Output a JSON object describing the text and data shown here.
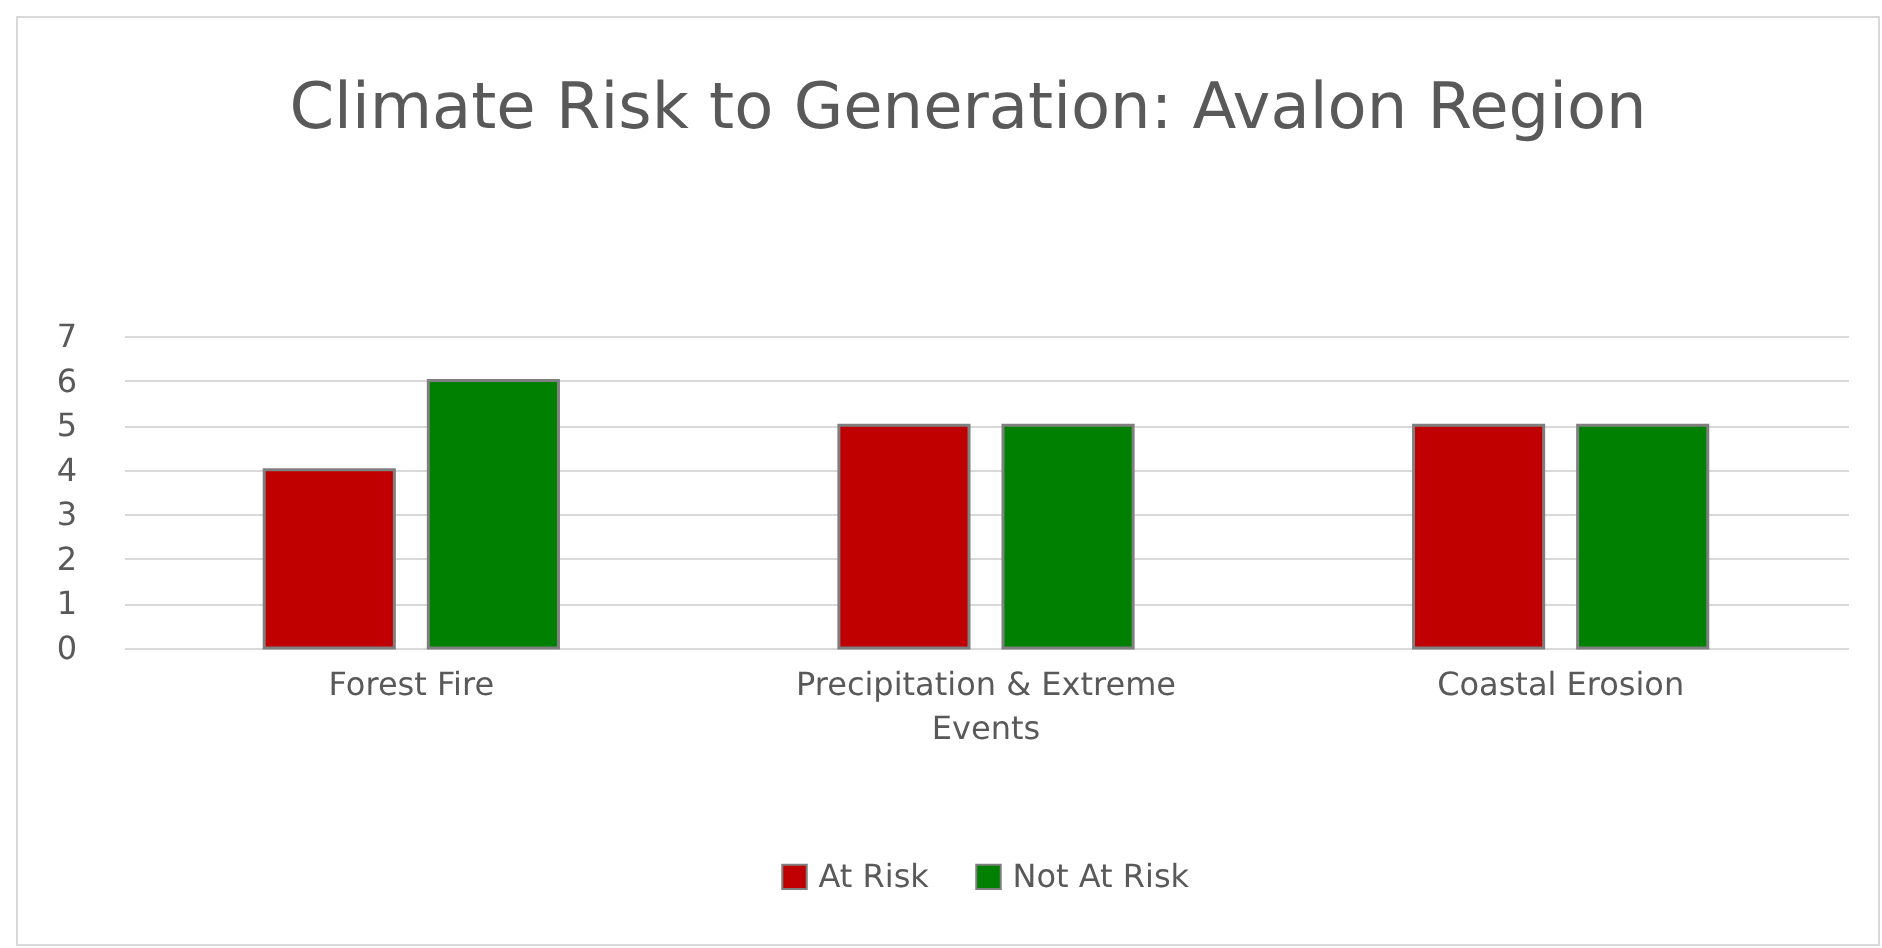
{
  "chart_data": {
    "type": "bar",
    "title": "Climate Risk to Generation: Avalon Region",
    "categories": [
      "Forest Fire",
      "Precipitation & Extreme Events",
      "Coastal Erosion"
    ],
    "series": [
      {
        "name": "At Risk",
        "color": "#c00000",
        "values": [
          4,
          5,
          5
        ]
      },
      {
        "name": "Not At Risk",
        "color": "#008000",
        "values": [
          6,
          5,
          5
        ]
      }
    ],
    "ylim": [
      0,
      7
    ],
    "yticks": [
      0,
      1,
      2,
      3,
      4,
      5,
      6,
      7
    ],
    "grid": "y",
    "legend": "bottom"
  }
}
